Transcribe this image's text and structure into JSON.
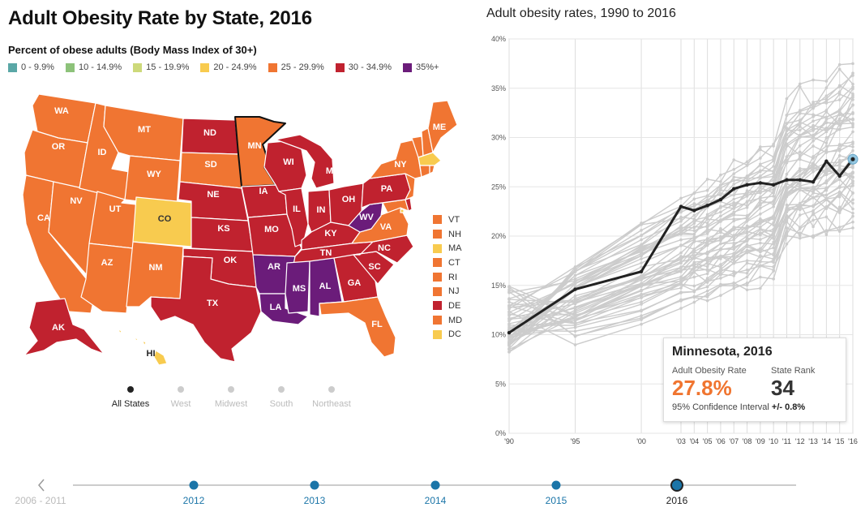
{
  "title": "Adult Obesity Rate by State, 2016",
  "subtitle": "Percent of obese adults (Body Mass Index of 30+)",
  "legend": [
    {
      "label": "0 - 9.9%",
      "color": "#5aa7a6"
    },
    {
      "label": "10 - 14.9%",
      "color": "#8dc27a"
    },
    {
      "label": "15 - 19.9%",
      "color": "#cdd97a"
    },
    {
      "label": "20 - 24.9%",
      "color": "#f8cb4f"
    },
    {
      "label": "25 - 29.9%",
      "color": "#f07532"
    },
    {
      "label": "30 - 34.9%",
      "color": "#c0222f"
    },
    {
      "label": "35%+",
      "color": "#6b1c7a"
    }
  ],
  "map_labels": {
    "WA": "WA",
    "OR": "OR",
    "CA": "CA",
    "NV": "NV",
    "ID": "ID",
    "MT": "MT",
    "WY": "WY",
    "UT": "UT",
    "AZ": "AZ",
    "CO": "CO",
    "NM": "NM",
    "ND": "ND",
    "SD": "SD",
    "NE": "NE",
    "KS": "KS",
    "OK": "OK",
    "TX": "TX",
    "MN": "MN",
    "IA": "IA",
    "MO": "MO",
    "AR": "AR",
    "LA": "LA",
    "WI": "WI",
    "IL": "IL",
    "MI": "MI",
    "IN": "IN",
    "OH": "OH",
    "KY": "KY",
    "TN": "TN",
    "MS": "MS",
    "AL": "AL",
    "GA": "GA",
    "FL": "FL",
    "SC": "SC",
    "NC": "NC",
    "VA": "VA",
    "WV": "WV",
    "PA": "PA",
    "NY": "NY",
    "ME": "ME",
    "AK": "AK",
    "HI": "HI"
  },
  "small_states": [
    {
      "label": "VT",
      "color": "#f07532"
    },
    {
      "label": "NH",
      "color": "#f07532"
    },
    {
      "label": "MA",
      "color": "#f8cb4f"
    },
    {
      "label": "CT",
      "color": "#f07532"
    },
    {
      "label": "RI",
      "color": "#f07532"
    },
    {
      "label": "NJ",
      "color": "#f07532"
    },
    {
      "label": "DE",
      "color": "#c0222f"
    },
    {
      "label": "MD",
      "color": "#f07532"
    },
    {
      "label": "DC",
      "color": "#f8cb4f"
    }
  ],
  "regions": [
    "All States",
    "West",
    "Midwest",
    "South",
    "Northeast"
  ],
  "chart_data": {
    "type": "line",
    "title": "Adult obesity rates, 1990 to 2016",
    "x_tick_labels": [
      "'90",
      "'95",
      "'00",
      "'03",
      "'04",
      "'05",
      "'06",
      "'07",
      "'08",
      "'09",
      "'10",
      "'11",
      "'12",
      "'13",
      "'14",
      "'15",
      "'16"
    ],
    "x": [
      1990,
      1995,
      2000,
      2003,
      2004,
      2005,
      2006,
      2007,
      2008,
      2009,
      2010,
      2011,
      2012,
      2013,
      2014,
      2015,
      2016
    ],
    "y_tick_labels": [
      "0%",
      "5%",
      "10%",
      "15%",
      "20%",
      "25%",
      "30%",
      "35%",
      "40%"
    ],
    "ylim": [
      0,
      40
    ],
    "highlight_series": {
      "name": "Minnesota",
      "values": [
        10.2,
        14.6,
        16.4,
        23.0,
        22.6,
        23.1,
        23.7,
        24.8,
        25.2,
        25.4,
        25.2,
        25.7,
        25.7,
        25.5,
        27.6,
        26.1,
        27.8
      ],
      "color": "#222222"
    },
    "background_series_color": "#cccccc"
  },
  "tooltip": {
    "title": "Minnesota, 2016",
    "rate_label": "Adult Obesity Rate",
    "rank_label": "State Rank",
    "rate": "27.8%",
    "rank": "34",
    "ci_label": "95% Confidence Interval",
    "ci_value": "+/- 0.8%"
  },
  "timeline": {
    "items": [
      "2006 - 2011",
      "2012",
      "2013",
      "2014",
      "2015",
      "2016"
    ],
    "selected": "2016",
    "prev_icon": "chevron-left-icon",
    "dot_color": "#1b75a8"
  }
}
